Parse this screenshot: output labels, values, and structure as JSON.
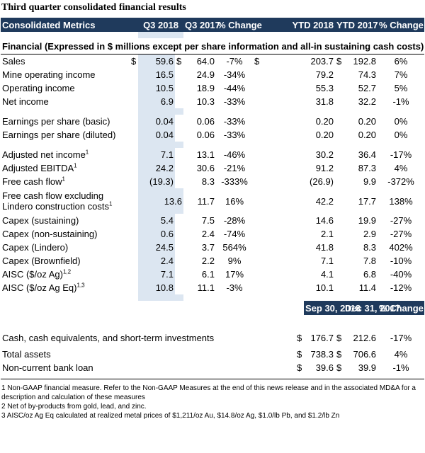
{
  "title": "Third quarter consolidated financial results",
  "header": {
    "metrics": "Consolidated Metrics",
    "q3_2018": "Q3 2018",
    "q3_2017": "Q3 2017",
    "pct_change_q": "% Change",
    "ytd_2018": "YTD 2018",
    "ytd_2017": "YTD 2017",
    "pct_change_y": "% Change"
  },
  "section_title": "Financial (Expressed in $ millions except per share information and all-in sustaining cash costs)",
  "rows": [
    {
      "label": "Sales",
      "sup": "",
      "cur1": "$",
      "q3_2018": "59.6",
      "cur2": "$",
      "q3_2017": "64.0",
      "pq": "-7%",
      "cur3": "$",
      "ytd_2018": "203.7",
      "cur4": "$",
      "ytd_2017": "192.8",
      "py": "6%"
    },
    {
      "label": "Mine operating income",
      "sup": "",
      "cur1": "",
      "q3_2018": "16.5",
      "cur2": "",
      "q3_2017": "24.9",
      "pq": "-34%",
      "cur3": "",
      "ytd_2018": "79.2",
      "cur4": "",
      "ytd_2017": "74.3",
      "py": "7%"
    },
    {
      "label": "Operating income",
      "sup": "",
      "cur1": "",
      "q3_2018": "10.5",
      "cur2": "",
      "q3_2017": "18.9",
      "pq": "-44%",
      "cur3": "",
      "ytd_2018": "55.3",
      "cur4": "",
      "ytd_2017": "52.7",
      "py": "5%"
    },
    {
      "label": "Net income",
      "sup": "",
      "cur1": "",
      "q3_2018": "6.9",
      "cur2": "",
      "q3_2017": "10.3",
      "pq": "-33%",
      "cur3": "",
      "ytd_2018": "31.8",
      "cur4": "",
      "ytd_2017": "32.2",
      "py": "-1%"
    },
    {
      "label": "Earnings per share (basic)",
      "sup": "",
      "cur1": "",
      "q3_2018": "0.04",
      "cur2": "",
      "q3_2017": "0.06",
      "pq": "-33%",
      "cur3": "",
      "ytd_2018": "0.20",
      "cur4": "",
      "ytd_2017": "0.20",
      "py": "0%"
    },
    {
      "label": "Earnings per share (diluted)",
      "sup": "",
      "cur1": "",
      "q3_2018": "0.04",
      "cur2": "",
      "q3_2017": "0.06",
      "pq": "-33%",
      "cur3": "",
      "ytd_2018": "0.20",
      "cur4": "",
      "ytd_2017": "0.20",
      "py": "0%"
    },
    {
      "label": "Adjusted net income",
      "sup": "1",
      "cur1": "",
      "q3_2018": "7.1",
      "cur2": "",
      "q3_2017": "13.1",
      "pq": "-46%",
      "cur3": "",
      "ytd_2018": "30.2",
      "cur4": "",
      "ytd_2017": "36.4",
      "py": "-17%"
    },
    {
      "label": "Adjusted EBITDA",
      "sup": "1",
      "cur1": "",
      "q3_2018": "24.2",
      "cur2": "",
      "q3_2017": "30.6",
      "pq": "-21%",
      "cur3": "",
      "ytd_2018": "91.2",
      "cur4": "",
      "ytd_2017": "87.3",
      "py": "4%"
    },
    {
      "label": "Free cash flow",
      "sup": "1",
      "cur1": "",
      "q3_2018": "(19.3)",
      "cur2": "",
      "q3_2017": "8.3",
      "pq": "-333%",
      "cur3": "",
      "ytd_2018": "(26.9)",
      "cur4": "",
      "ytd_2017": "9.9",
      "py": "-372%"
    },
    {
      "label": "Free cash flow excluding",
      "label2": "Lindero construction costs",
      "sup": "1",
      "cur1": "",
      "q3_2018": "13.6",
      "cur2": "",
      "q3_2017": "11.7",
      "pq": "16%",
      "cur3": "",
      "ytd_2018": "42.2",
      "cur4": "",
      "ytd_2017": "17.7",
      "py": "138%"
    },
    {
      "label": "Capex (sustaining)",
      "sup": "",
      "cur1": "",
      "q3_2018": "5.4",
      "cur2": "",
      "q3_2017": "7.5",
      "pq": "-28%",
      "cur3": "",
      "ytd_2018": "14.6",
      "cur4": "",
      "ytd_2017": "19.9",
      "py": "-27%"
    },
    {
      "label": "Capex (non-sustaining)",
      "sup": "",
      "cur1": "",
      "q3_2018": "0.6",
      "cur2": "",
      "q3_2017": "2.4",
      "pq": "-74%",
      "cur3": "",
      "ytd_2018": "2.1",
      "cur4": "",
      "ytd_2017": "2.9",
      "py": "-27%"
    },
    {
      "label": "Capex (Lindero)",
      "sup": "",
      "cur1": "",
      "q3_2018": "24.5",
      "cur2": "",
      "q3_2017": "3.7",
      "pq": "564%",
      "cur3": "",
      "ytd_2018": "41.8",
      "cur4": "",
      "ytd_2017": "8.3",
      "py": "402%"
    },
    {
      "label": "Capex (Brownfield)",
      "sup": "",
      "cur1": "",
      "q3_2018": "2.4",
      "cur2": "",
      "q3_2017": "2.2",
      "pq": "9%",
      "cur3": "",
      "ytd_2018": "7.1",
      "cur4": "",
      "ytd_2017": "7.8",
      "py": "-10%"
    },
    {
      "label": "AISC ($/oz Ag)",
      "sup": "1,2",
      "cur1": "",
      "q3_2018": "7.1",
      "cur2": "",
      "q3_2017": "6.1",
      "pq": "17%",
      "cur3": "",
      "ytd_2018": "4.1",
      "cur4": "",
      "ytd_2017": "6.8",
      "py": "-40%"
    },
    {
      "label": "AISC ($/oz Ag Eq)",
      "sup": "1,3",
      "cur1": "",
      "q3_2018": "10.8",
      "cur2": "",
      "q3_2017": "11.1",
      "pq": "-3%",
      "cur3": "",
      "ytd_2018": "10.1",
      "cur4": "",
      "ytd_2017": "11.4",
      "py": "-12%"
    }
  ],
  "balance_header": {
    "sep": "Sep 30, 2018",
    "dec": "Dec 31, 2017",
    "pct": "% Change"
  },
  "balance_rows": [
    {
      "label": "Cash, cash equivalents, and short-term investments",
      "cur1": "$",
      "sep": "176.7",
      "cur2": "$",
      "dec": "212.6",
      "pct": "-17%"
    },
    {
      "label": "Total assets",
      "cur1": "$",
      "sep": "738.3",
      "cur2": "$",
      "dec": "706.6",
      "pct": "4%"
    },
    {
      "label": "Non-current bank loan",
      "cur1": "$",
      "sep": "39.6",
      "cur2": "$",
      "dec": "39.9",
      "pct": "-1%"
    }
  ],
  "footnotes": [
    "1 Non-GAAP financial measure. Refer to the Non-GAAP Measures at the end of this news release and in the associated MD&A for a description and calculation of these measures",
    "2 Net of by-products from gold, lead, and zinc.",
    "3 AISC/oz Ag Eq calculated at realized metal prices of $1,211/oz Au, $14.8/oz Ag, $1.0/lb Pb, and $1.2/lb Zn"
  ]
}
